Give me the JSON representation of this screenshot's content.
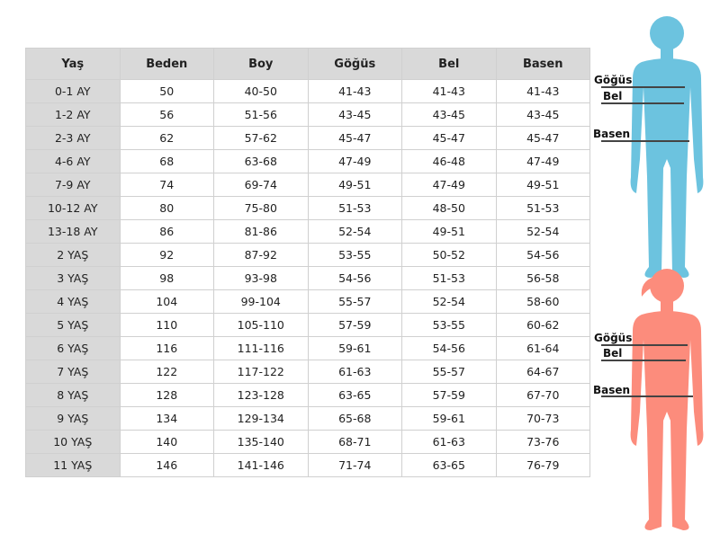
{
  "table": {
    "headers": [
      "Yaş",
      "Beden",
      "Boy",
      "Göğüs",
      "Bel",
      "Basen"
    ],
    "rows": [
      [
        "0-1 AY",
        "50",
        "40-50",
        "41-43",
        "41-43",
        "41-43"
      ],
      [
        "1-2 AY",
        "56",
        "51-56",
        "43-45",
        "43-45",
        "43-45"
      ],
      [
        "2-3 AY",
        "62",
        "57-62",
        "45-47",
        "45-47",
        "45-47"
      ],
      [
        "4-6 AY",
        "68",
        "63-68",
        "47-49",
        "46-48",
        "47-49"
      ],
      [
        "7-9 AY",
        "74",
        "69-74",
        "49-51",
        "47-49",
        "49-51"
      ],
      [
        "10-12 AY",
        "80",
        "75-80",
        "51-53",
        "48-50",
        "51-53"
      ],
      [
        "13-18 AY",
        "86",
        "81-86",
        "52-54",
        "49-51",
        "52-54"
      ],
      [
        "2 YAŞ",
        "92",
        "87-92",
        "53-55",
        "50-52",
        "54-56"
      ],
      [
        "3 YAŞ",
        "98",
        "93-98",
        "54-56",
        "51-53",
        "56-58"
      ],
      [
        "4 YAŞ",
        "104",
        "99-104",
        "55-57",
        "52-54",
        "58-60"
      ],
      [
        "5 YAŞ",
        "110",
        "105-110",
        "57-59",
        "53-55",
        "60-62"
      ],
      [
        "6 YAŞ",
        "116",
        "111-116",
        "59-61",
        "54-56",
        "61-64"
      ],
      [
        "7 YAŞ",
        "122",
        "117-122",
        "61-63",
        "55-57",
        "64-67"
      ],
      [
        "8 YAŞ",
        "128",
        "123-128",
        "63-65",
        "57-59",
        "67-70"
      ],
      [
        "9 YAŞ",
        "134",
        "129-134",
        "65-68",
        "59-61",
        "70-73"
      ],
      [
        "10 YAŞ",
        "140",
        "135-140",
        "68-71",
        "61-63",
        "73-76"
      ],
      [
        "11 YAŞ",
        "146",
        "141-146",
        "71-74",
        "63-65",
        "76-79"
      ]
    ]
  },
  "figures": {
    "boy": {
      "color": "#6cc3df",
      "labels": {
        "chest": "Göğüs",
        "waist": "Bel",
        "hip": "Basen"
      }
    },
    "girl": {
      "color": "#fc8c7c",
      "labels": {
        "chest": "Göğüs",
        "waist": "Bel",
        "hip": "Basen"
      }
    }
  }
}
